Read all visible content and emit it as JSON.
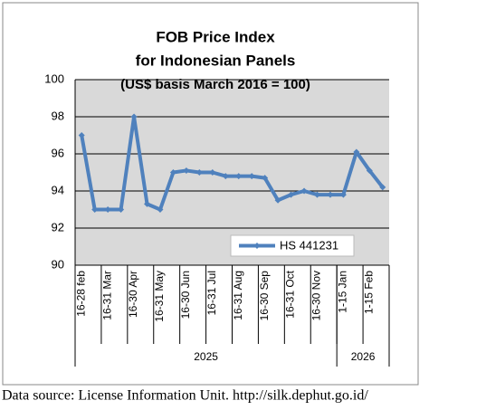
{
  "chart_data": {
    "type": "line",
    "title": "FOB Price Index",
    "title_line2": "for Indonesian Panels",
    "subtitle": "(US$ basis March 2016 = 100)",
    "categories": [
      "16-28 feb",
      null,
      "16-31 Mar",
      null,
      "16-30 Apr",
      null,
      "16-31 May",
      null,
      "16-30 Jun",
      null,
      "16-31 Jul",
      null,
      "16-31 Aug",
      null,
      "16-30 Sep",
      null,
      "16-31 Oct",
      null,
      "16-30 Nov",
      null,
      "1-15 Jan",
      null,
      "1-15 Feb",
      null
    ],
    "groups": [
      {
        "label": "2025",
        "count": 20
      },
      {
        "label": "2026",
        "count": 4
      }
    ],
    "series": [
      {
        "name": "HS 441231",
        "color": "#4f81bd",
        "values": [
          97,
          93,
          93,
          93,
          98,
          93.3,
          93,
          95,
          95.1,
          95,
          95,
          94.8,
          94.8,
          94.8,
          94.7,
          93.5,
          93.8,
          94,
          93.8,
          93.8,
          93.8,
          96.1,
          95.1,
          94.2
        ]
      }
    ],
    "ylim": [
      90,
      100
    ],
    "yticks": [
      90,
      92,
      94,
      96,
      98,
      100
    ],
    "grid": true,
    "source": "Data source: License Information Unit. http://silk.dephut.go.id/"
  }
}
